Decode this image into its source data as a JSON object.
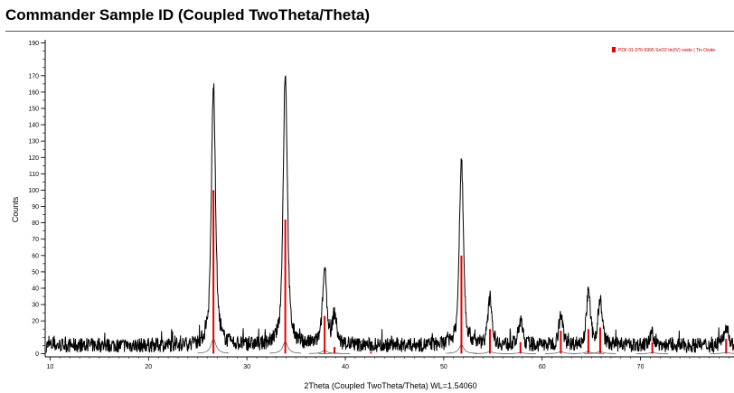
{
  "header": {
    "title": "Commander Sample ID (Coupled TwoTheta/Theta)"
  },
  "chart_data": {
    "type": "line",
    "title": "Commander Sample ID (Coupled TwoTheta/Theta)",
    "xlabel": "2Theta (Coupled TwoTheta/Theta) WL=1.54060",
    "ylabel": "Counts",
    "xlim": [
      9.5,
      79.5
    ],
    "ylim": [
      -2,
      192
    ],
    "x_ticks": [
      10,
      20,
      30,
      40,
      50,
      60,
      70
    ],
    "y_ticks": [
      0,
      20,
      30,
      40,
      50,
      60,
      70,
      80,
      90,
      100,
      110,
      120,
      130,
      140,
      150,
      160,
      170,
      190
    ],
    "grid": false,
    "background_level": 5,
    "measured": {
      "name": "Commander Sample ID (Coupled TwoTheta/Theta)",
      "color": "#000000",
      "peaks": [
        {
          "x": 26.6,
          "y": 162
        },
        {
          "x": 33.9,
          "y": 172
        },
        {
          "x": 37.9,
          "y": 50
        },
        {
          "x": 38.9,
          "y": 23
        },
        {
          "x": 51.8,
          "y": 117
        },
        {
          "x": 54.7,
          "y": 33
        },
        {
          "x": 57.8,
          "y": 20
        },
        {
          "x": 61.9,
          "y": 23
        },
        {
          "x": 64.7,
          "y": 36
        },
        {
          "x": 65.9,
          "y": 32
        },
        {
          "x": 71.2,
          "y": 12
        },
        {
          "x": 78.7,
          "y": 17
        }
      ]
    },
    "reference": {
      "name": "PDF 01-070-6995 SnO2 tin(IV) oxide | Tin Oxide",
      "color": "#e00000",
      "sticks": [
        {
          "x": 26.6,
          "y": 100
        },
        {
          "x": 33.9,
          "y": 82
        },
        {
          "x": 37.9,
          "y": 23
        },
        {
          "x": 38.9,
          "y": 4
        },
        {
          "x": 42.6,
          "y": 1
        },
        {
          "x": 51.8,
          "y": 60
        },
        {
          "x": 54.7,
          "y": 15
        },
        {
          "x": 57.8,
          "y": 7
        },
        {
          "x": 61.9,
          "y": 14
        },
        {
          "x": 64.7,
          "y": 15
        },
        {
          "x": 65.9,
          "y": 16
        },
        {
          "x": 71.2,
          "y": 7
        },
        {
          "x": 78.7,
          "y": 9
        }
      ]
    },
    "legend": {
      "position": "top-right",
      "entries": [
        "PDF 01-070-6995 SnO2 tin(IV) oxide | Tin Oxide"
      ]
    }
  }
}
